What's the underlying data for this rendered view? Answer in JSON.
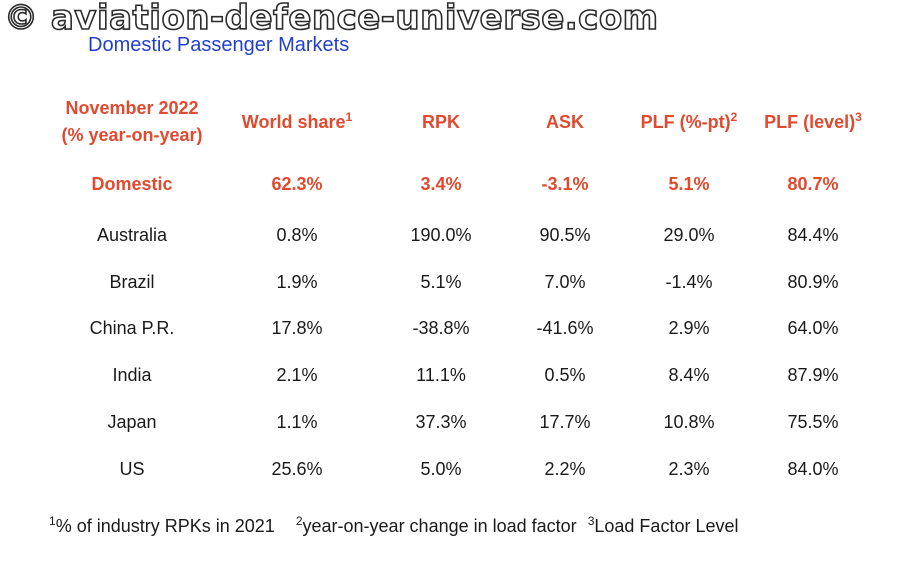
{
  "watermark": "© aviation-defence-universe.com",
  "subtitle": "Domestic Passenger Markets",
  "table": {
    "headers": {
      "period_line1": "November 2022",
      "period_line2": "(% year-on-year)",
      "world_share": "World share",
      "world_share_sup": "1",
      "rpk": "RPK",
      "ask": "ASK",
      "plf_pt": "PLF (%-pt)",
      "plf_pt_sup": "2",
      "plf_level": "PLF (level)",
      "plf_level_sup": "3"
    },
    "rows": [
      {
        "market": "Domestic",
        "world_share": "62.3%",
        "rpk": "3.4%",
        "ask": "-3.1%",
        "plf_pt": "5.1%",
        "plf_level": "80.7%"
      },
      {
        "market": "Australia",
        "world_share": "0.8%",
        "rpk": "190.0%",
        "ask": "90.5%",
        "plf_pt": "29.0%",
        "plf_level": "84.4%"
      },
      {
        "market": "Brazil",
        "world_share": "1.9%",
        "rpk": "5.1%",
        "ask": "7.0%",
        "plf_pt": "-1.4%",
        "plf_level": "80.9%"
      },
      {
        "market": "China P.R.",
        "world_share": "17.8%",
        "rpk": "-38.8%",
        "ask": "-41.6%",
        "plf_pt": "2.9%",
        "plf_level": "64.0%"
      },
      {
        "market": "India",
        "world_share": "2.1%",
        "rpk": "11.1%",
        "ask": "0.5%",
        "plf_pt": "8.4%",
        "plf_level": "87.9%"
      },
      {
        "market": "Japan",
        "world_share": "1.1%",
        "rpk": "37.3%",
        "ask": "17.7%",
        "plf_pt": "10.8%",
        "plf_level": "75.5%"
      },
      {
        "market": "US",
        "world_share": "25.6%",
        "rpk": "5.0%",
        "ask": "2.2%",
        "plf_pt": "2.3%",
        "plf_level": "84.0%"
      }
    ]
  },
  "footnotes": {
    "fn1_sup": "1",
    "fn1_text": "% of industry RPKs in 2021",
    "fn2_sup": "2",
    "fn2_text": "year-on-year change in load factor",
    "fn3_sup": "3",
    "fn3_text": "Load Factor Level"
  },
  "colors": {
    "accent": "#e04a2f",
    "subtitle": "#2440c8",
    "text": "#1a1a1a"
  }
}
